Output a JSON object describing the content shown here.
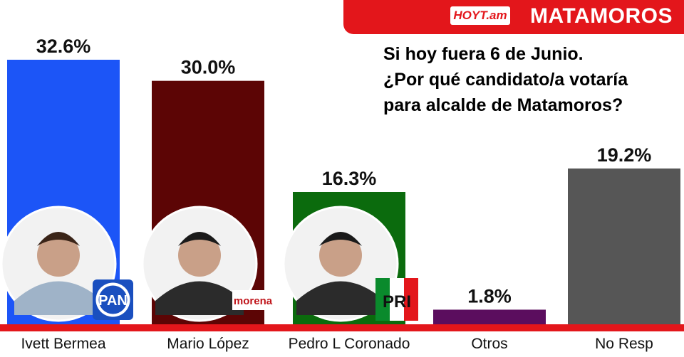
{
  "header": {
    "logo_text": "HOYT.am",
    "city": "MATAMOROS"
  },
  "question": {
    "line1": "Si hoy fuera 6 de Junio.",
    "line2": "¿Por qué candidato/a votaría",
    "line3": "para alcalde de Matamoros?"
  },
  "chart_data": {
    "type": "bar",
    "title": "",
    "xlabel": "",
    "ylabel": "",
    "categories": [
      "Ivett Bermea",
      "Mario López",
      "Pedro L Coronado",
      "Otros",
      "No Resp"
    ],
    "values": [
      32.6,
      30.0,
      16.3,
      1.8,
      19.2
    ],
    "value_labels": [
      "32.6%",
      "30.0%",
      "16.3%",
      "1.8%",
      "19.2%"
    ],
    "colors": [
      "#1c55f7",
      "#5c0505",
      "#0b6b0d",
      "#5b0d5e",
      "#565656"
    ],
    "party_badges": [
      "PAN",
      "morena",
      "PRI",
      "",
      ""
    ],
    "baseline_color": "#e3161b",
    "ylim": [
      0,
      32.6
    ]
  }
}
